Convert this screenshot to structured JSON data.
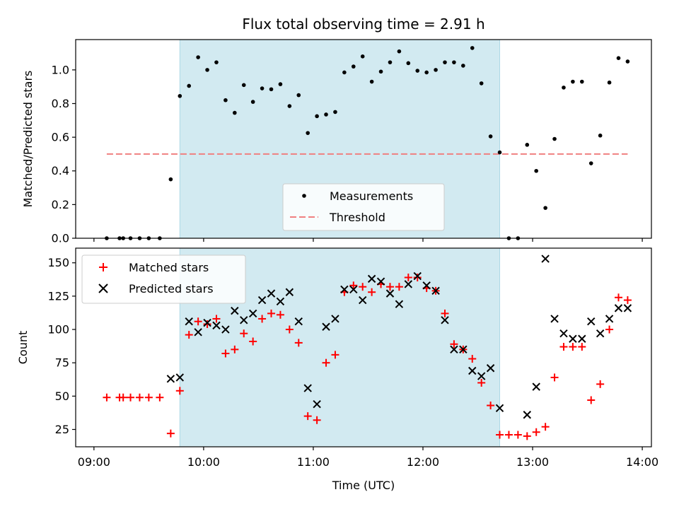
{
  "title": "Flux total observing time = 2.91 h",
  "shared_xlabel": "Time (UTC)",
  "x_ticks": [
    "09:00",
    "10:00",
    "11:00",
    "12:00",
    "13:00",
    "14:00"
  ],
  "colors": {
    "shade": "#add8e6",
    "measurement": "#000000",
    "threshold": "#f08080",
    "matched": "#ff0000",
    "predicted": "#000000"
  },
  "chart_data": [
    {
      "type": "scatter",
      "ylabel": "Matched/Predicted stars",
      "xlim": [
        "08:50",
        "14:05"
      ],
      "ylim": [
        0,
        1.18
      ],
      "y_ticks": [
        "0.0",
        "0.2",
        "0.4",
        "0.6",
        "0.8",
        "1.0"
      ],
      "shaded_interval": [
        "09:47",
        "12:42"
      ],
      "legend_position": "lower-center",
      "threshold": {
        "name": "Threshold",
        "y": 0.5,
        "x_range": [
          "09:07",
          "13:52"
        ]
      },
      "series": [
        {
          "name": "Measurements",
          "marker": "dot",
          "points": [
            [
              "09:07",
              0.0
            ],
            [
              "09:14",
              0.0
            ],
            [
              "09:16",
              0.0
            ],
            [
              "09:20",
              0.0
            ],
            [
              "09:25",
              0.0
            ],
            [
              "09:30",
              0.0
            ],
            [
              "09:36",
              0.0
            ],
            [
              "09:42",
              0.35
            ],
            [
              "09:47",
              0.845
            ],
            [
              "09:52",
              0.905
            ],
            [
              "09:57",
              1.075
            ],
            [
              "10:02",
              1.0
            ],
            [
              "10:07",
              1.045
            ],
            [
              "10:12",
              0.82
            ],
            [
              "10:17",
              0.745
            ],
            [
              "10:22",
              0.91
            ],
            [
              "10:27",
              0.81
            ],
            [
              "10:32",
              0.89
            ],
            [
              "10:37",
              0.885
            ],
            [
              "10:42",
              0.915
            ],
            [
              "10:47",
              0.785
            ],
            [
              "10:52",
              0.85
            ],
            [
              "10:57",
              0.625
            ],
            [
              "11:02",
              0.725
            ],
            [
              "11:07",
              0.735
            ],
            [
              "11:12",
              0.75
            ],
            [
              "11:17",
              0.985
            ],
            [
              "11:22",
              1.02
            ],
            [
              "11:27",
              1.08
            ],
            [
              "11:32",
              0.93
            ],
            [
              "11:37",
              0.99
            ],
            [
              "11:42",
              1.045
            ],
            [
              "11:47",
              1.11
            ],
            [
              "11:52",
              1.04
            ],
            [
              "11:57",
              0.995
            ],
            [
              "12:02",
              0.985
            ],
            [
              "12:07",
              1.0
            ],
            [
              "12:12",
              1.045
            ],
            [
              "12:17",
              1.045
            ],
            [
              "12:22",
              1.025
            ],
            [
              "12:27",
              1.13
            ],
            [
              "12:32",
              0.92
            ],
            [
              "12:37",
              0.605
            ],
            [
              "12:42",
              0.51
            ],
            [
              "12:47",
              0.0
            ],
            [
              "12:52",
              0.0
            ],
            [
              "12:57",
              0.555
            ],
            [
              "13:02",
              0.4
            ],
            [
              "13:07",
              0.18
            ],
            [
              "13:12",
              0.59
            ],
            [
              "13:17",
              0.895
            ],
            [
              "13:22",
              0.93
            ],
            [
              "13:27",
              0.93
            ],
            [
              "13:32",
              0.445
            ],
            [
              "13:37",
              0.61
            ],
            [
              "13:42",
              0.925
            ],
            [
              "13:47",
              1.07
            ],
            [
              "13:52",
              1.05
            ]
          ]
        }
      ]
    },
    {
      "type": "scatter",
      "ylabel": "Count",
      "xlabel": "Time (UTC)",
      "xlim": [
        "08:50",
        "14:05"
      ],
      "ylim": [
        12,
        161
      ],
      "y_ticks": [
        "25",
        "50",
        "75",
        "100",
        "125",
        "150"
      ],
      "shaded_interval": [
        "09:47",
        "12:42"
      ],
      "legend_position": "upper-left",
      "series": [
        {
          "name": "Matched stars",
          "marker": "plus",
          "points": [
            [
              "09:07",
              49
            ],
            [
              "09:14",
              49
            ],
            [
              "09:16",
              49
            ],
            [
              "09:20",
              49
            ],
            [
              "09:25",
              49
            ],
            [
              "09:30",
              49
            ],
            [
              "09:36",
              49
            ],
            [
              "09:42",
              22
            ],
            [
              "09:47",
              54
            ],
            [
              "09:52",
              96
            ],
            [
              "09:57",
              106
            ],
            [
              "10:02",
              104
            ],
            [
              "10:07",
              108
            ],
            [
              "10:12",
              82
            ],
            [
              "10:17",
              85
            ],
            [
              "10:22",
              97
            ],
            [
              "10:27",
              91
            ],
            [
              "10:32",
              108
            ],
            [
              "10:37",
              112
            ],
            [
              "10:42",
              111
            ],
            [
              "10:47",
              100
            ],
            [
              "10:52",
              90
            ],
            [
              "10:57",
              35
            ],
            [
              "11:02",
              32
            ],
            [
              "11:07",
              75
            ],
            [
              "11:12",
              81
            ],
            [
              "11:17",
              128
            ],
            [
              "11:22",
              133
            ],
            [
              "11:27",
              132
            ],
            [
              "11:32",
              128
            ],
            [
              "11:37",
              134
            ],
            [
              "11:42",
              132
            ],
            [
              "11:47",
              132
            ],
            [
              "11:52",
              139
            ],
            [
              "11:57",
              139
            ],
            [
              "12:02",
              131
            ],
            [
              "12:07",
              129
            ],
            [
              "12:12",
              112
            ],
            [
              "12:17",
              89
            ],
            [
              "12:22",
              85
            ],
            [
              "12:27",
              78
            ],
            [
              "12:32",
              60
            ],
            [
              "12:37",
              43
            ],
            [
              "12:42",
              21
            ],
            [
              "12:47",
              21
            ],
            [
              "12:52",
              21
            ],
            [
              "12:57",
              20
            ],
            [
              "13:02",
              23
            ],
            [
              "13:07",
              27
            ],
            [
              "13:12",
              64
            ],
            [
              "13:17",
              87
            ],
            [
              "13:22",
              87
            ],
            [
              "13:27",
              87
            ],
            [
              "13:32",
              47
            ],
            [
              "13:37",
              59
            ],
            [
              "13:42",
              100
            ],
            [
              "13:47",
              124
            ],
            [
              "13:52",
              122
            ]
          ]
        },
        {
          "name": "Predicted stars",
          "marker": "x",
          "points": [
            [
              "09:42",
              63
            ],
            [
              "09:47",
              64
            ],
            [
              "09:52",
              106
            ],
            [
              "09:57",
              98
            ],
            [
              "10:02",
              105
            ],
            [
              "10:07",
              103
            ],
            [
              "10:12",
              100
            ],
            [
              "10:17",
              114
            ],
            [
              "10:22",
              107
            ],
            [
              "10:27",
              112
            ],
            [
              "10:32",
              122
            ],
            [
              "10:37",
              127
            ],
            [
              "10:42",
              121
            ],
            [
              "10:47",
              128
            ],
            [
              "10:52",
              106
            ],
            [
              "10:57",
              56
            ],
            [
              "11:02",
              44
            ],
            [
              "11:07",
              102
            ],
            [
              "11:12",
              108
            ],
            [
              "11:17",
              130
            ],
            [
              "11:22",
              130
            ],
            [
              "11:27",
              122
            ],
            [
              "11:32",
              138
            ],
            [
              "11:37",
              136
            ],
            [
              "11:42",
              127
            ],
            [
              "11:47",
              119
            ],
            [
              "11:52",
              134
            ],
            [
              "11:57",
              140
            ],
            [
              "12:02",
              133
            ],
            [
              "12:07",
              129
            ],
            [
              "12:12",
              107
            ],
            [
              "12:17",
              85
            ],
            [
              "12:22",
              85
            ],
            [
              "12:27",
              69
            ],
            [
              "12:32",
              65
            ],
            [
              "12:37",
              71
            ],
            [
              "12:42",
              41
            ],
            [
              "12:57",
              36
            ],
            [
              "13:02",
              57
            ],
            [
              "13:12",
              108
            ],
            [
              "13:07",
              153
            ],
            [
              "13:17",
              97
            ],
            [
              "13:22",
              93
            ],
            [
              "13:27",
              93
            ],
            [
              "13:32",
              106
            ],
            [
              "13:37",
              97
            ],
            [
              "13:42",
              108
            ],
            [
              "13:47",
              116
            ],
            [
              "13:52",
              116
            ]
          ]
        }
      ]
    }
  ]
}
